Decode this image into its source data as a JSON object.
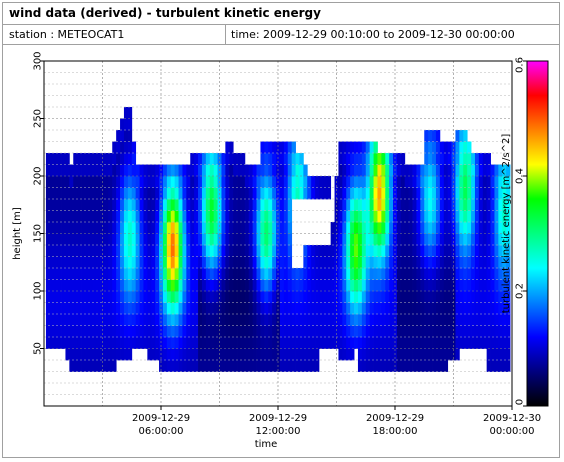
{
  "window": {
    "title": "wind data (derived) - turbulent kinetic energy",
    "station": "station : METEOCAT1",
    "time_range": "time: 2009-12-29 00:10:00 to 2009-12-30 00:00:00"
  },
  "chart_data": {
    "type": "heatmap",
    "title": "wind data (derived) - turbulent kinetic energy",
    "xlabel": "time",
    "ylabel": "height [m]",
    "colorbar_label": "turbulent kinetic energy [m^2/s^2]",
    "colormap": [
      "#000000",
      "#00007f",
      "#0000ff",
      "#0080ff",
      "#00ffff",
      "#00ff80",
      "#00ff00",
      "#ffff00",
      "#ff8000",
      "#ff0000",
      "#ff00ff"
    ],
    "ylim": [
      0,
      300
    ],
    "yticks": [
      50,
      100,
      150,
      200,
      250,
      300
    ],
    "xlim": [
      0,
      24
    ],
    "xticks": [
      {
        "hour": 6,
        "line1": "2009-12-29",
        "line2": "06:00:00"
      },
      {
        "hour": 12,
        "line1": "2009-12-29",
        "line2": "12:00:00"
      },
      {
        "hour": 18,
        "line1": "2009-12-29",
        "line2": "18:00:00"
      },
      {
        "hour": 24,
        "line1": "2009-12-30",
        "line2": "00:00:00"
      }
    ],
    "clim": [
      0,
      0.6
    ],
    "cbar_ticks": [
      "0",
      "0.2",
      "0.4",
      "0.6"
    ],
    "cbar_tick_values": [
      0,
      0.2,
      0.4,
      0.6
    ],
    "time_step_hours": 0.2,
    "height_bins_m": [
      35,
      45,
      55,
      65,
      75,
      85,
      95,
      105,
      115,
      125,
      135,
      145,
      155,
      165,
      175,
      185,
      195,
      205,
      215,
      225,
      235,
      245,
      255
    ],
    "top_height_profile": [
      [
        0.2,
        215
      ],
      [
        1.0,
        215
      ],
      [
        1.2,
        205
      ],
      [
        1.4,
        215
      ],
      [
        3.4,
        215
      ],
      [
        3.6,
        225
      ],
      [
        3.8,
        235
      ],
      [
        4.0,
        245
      ],
      [
        4.2,
        255
      ],
      [
        4.4,
        255
      ],
      [
        4.6,
        225
      ],
      [
        4.8,
        205
      ],
      [
        7.4,
        205
      ],
      [
        7.6,
        215
      ],
      [
        9.0,
        215
      ],
      [
        9.2,
        225
      ],
      [
        9.6,
        215
      ],
      [
        10.2,
        205
      ],
      [
        11.0,
        225
      ],
      [
        12.6,
        225
      ],
      [
        12.8,
        215
      ],
      [
        13.2,
        205
      ],
      [
        13.4,
        195
      ],
      [
        14.8,
        195
      ],
      [
        15.0,
        225
      ],
      [
        16.8,
        225
      ],
      [
        17.0,
        215
      ],
      [
        18.2,
        215
      ],
      [
        18.4,
        205
      ],
      [
        19.2,
        205
      ],
      [
        19.4,
        235
      ],
      [
        20.2,
        225
      ],
      [
        20.6,
        225
      ],
      [
        21.0,
        235
      ],
      [
        21.6,
        225
      ],
      [
        21.8,
        215
      ],
      [
        22.6,
        215
      ],
      [
        22.8,
        205
      ],
      [
        23.8,
        205
      ]
    ],
    "bottom_height_profile": [
      [
        0.2,
        55
      ],
      [
        1.0,
        45
      ],
      [
        1.2,
        35
      ],
      [
        3.6,
        35
      ],
      [
        3.8,
        45
      ],
      [
        4.6,
        55
      ],
      [
        4.8,
        45
      ],
      [
        6.0,
        35
      ],
      [
        9.8,
        35
      ],
      [
        14.0,
        35
      ],
      [
        14.6,
        45
      ],
      [
        15.8,
        55
      ],
      [
        16.0,
        35
      ],
      [
        20.4,
        35
      ],
      [
        20.6,
        45
      ],
      [
        22.4,
        55
      ],
      [
        22.6,
        35
      ],
      [
        23.8,
        35
      ]
    ],
    "tke_peaks": [
      {
        "t_hour": 4.4,
        "height_m": 150,
        "tke": 0.25
      },
      {
        "t_hour": 6.6,
        "height_m": 140,
        "tke": 0.47
      },
      {
        "t_hour": 8.6,
        "height_m": 170,
        "tke": 0.34
      },
      {
        "t_hour": 11.4,
        "height_m": 150,
        "tke": 0.31
      },
      {
        "t_hour": 13.0,
        "height_m": 180,
        "tke": 0.27
      },
      {
        "t_hour": 16.0,
        "height_m": 140,
        "tke": 0.36
      },
      {
        "t_hour": 17.2,
        "height_m": 185,
        "tke": 0.46
      },
      {
        "t_hour": 19.8,
        "height_m": 180,
        "tke": 0.24
      },
      {
        "t_hour": 21.6,
        "height_m": 190,
        "tke": 0.32
      },
      {
        "t_hour": 23.6,
        "height_m": 170,
        "tke": 0.26
      }
    ],
    "missing_data_regions": [
      {
        "t_start": 12.6,
        "t_end": 13.2,
        "h_start": 120,
        "h_end": 185
      },
      {
        "t_start": 13.2,
        "t_end": 14.6,
        "h_start": 140,
        "h_end": 180
      },
      {
        "t_start": 14.6,
        "t_end": 14.8,
        "h_start": 160,
        "h_end": 200
      },
      {
        "t_start": 4.6,
        "t_end": 5.4,
        "h_start": 35,
        "h_end": 55
      },
      {
        "t_start": 14.0,
        "t_end": 15.0,
        "h_start": 35,
        "h_end": 55
      },
      {
        "t_start": 21.2,
        "t_end": 22.4,
        "h_start": 35,
        "h_end": 55
      },
      {
        "t_start": 0.2,
        "t_end": 1.0,
        "h_start": 35,
        "h_end": 45
      }
    ],
    "grid": true
  }
}
